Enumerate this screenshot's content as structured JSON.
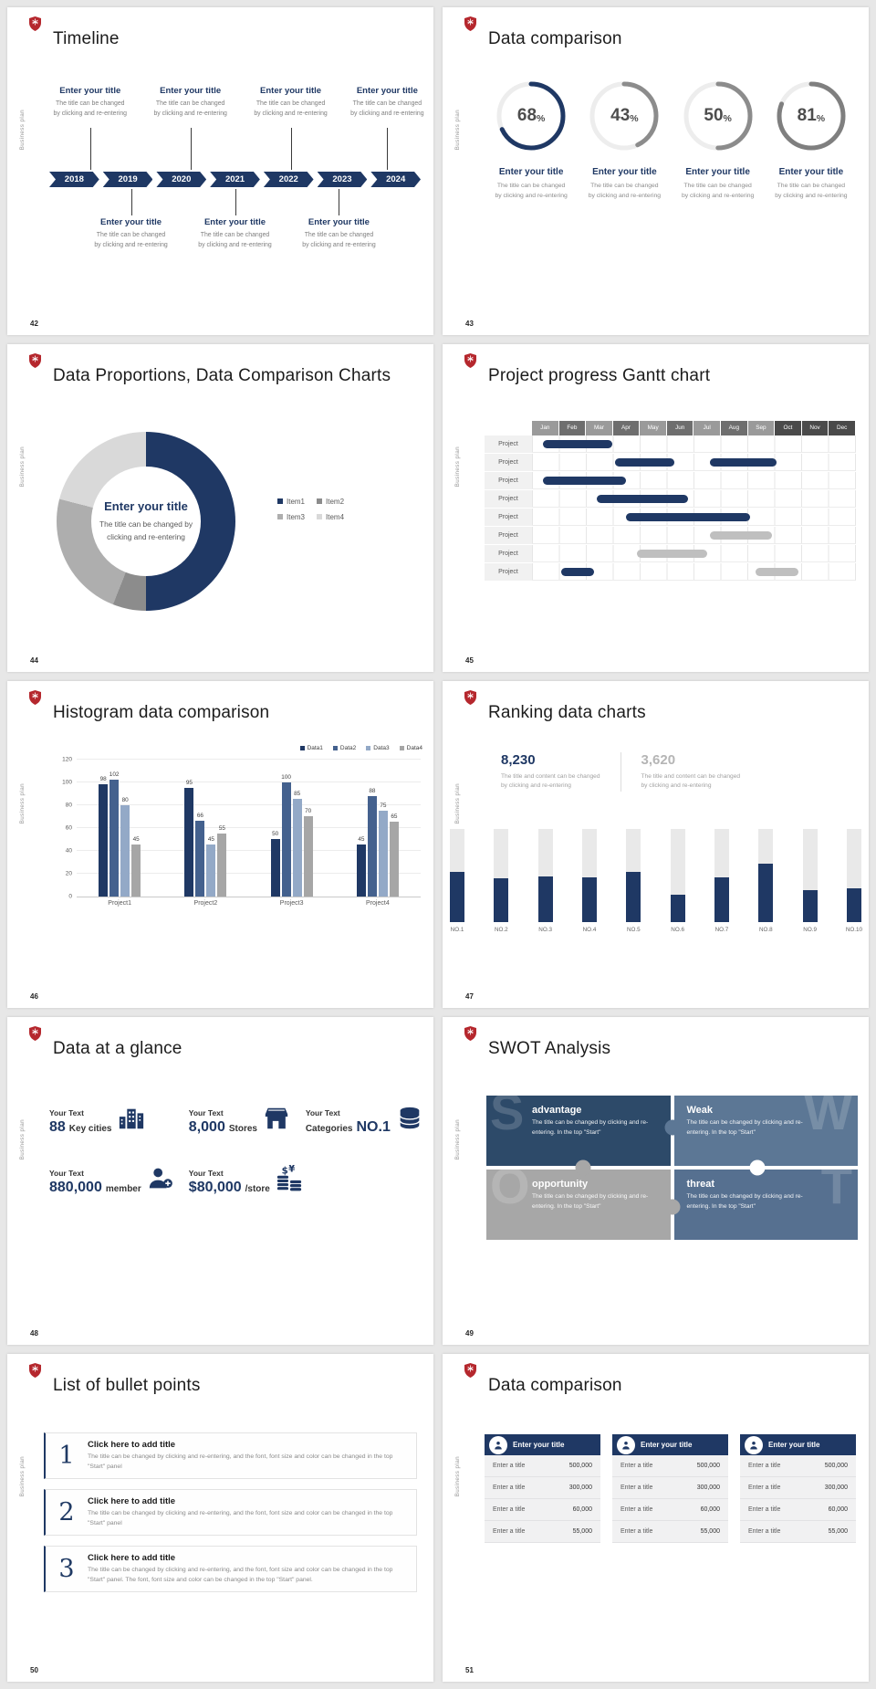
{
  "page": {
    "background": "#e7e7e7"
  },
  "common": {
    "vertical_label": "Business plan"
  },
  "colors": {
    "navy": "#1f3864",
    "steel": "#44618e",
    "light_steel": "#93a9c7",
    "gray": "#a6a6a6",
    "brand_red": "#b5272d"
  },
  "slides": [
    {
      "number": "42",
      "title": "Timeline"
    },
    {
      "number": "43",
      "title": "Data comparison"
    },
    {
      "number": "44",
      "title": "Data Proportions, Data Comparison Charts"
    },
    {
      "number": "45",
      "title": "Project progress Gantt chart"
    },
    {
      "number": "46",
      "title": "Histogram data comparison"
    },
    {
      "number": "47",
      "title": "Ranking data charts"
    },
    {
      "number": "48",
      "title": "Data at a glance"
    },
    {
      "number": "49",
      "title": "SWOT Analysis"
    },
    {
      "number": "50",
      "title": "List of bullet points"
    },
    {
      "number": "51",
      "title": "Data comparison"
    }
  ],
  "timeline": {
    "years": [
      "2018",
      "2019",
      "2020",
      "2021",
      "2022",
      "2023",
      "2024"
    ],
    "top_items": [
      {
        "title": "Enter your title",
        "caption_line1": "The title can be changed",
        "caption_line2": "by clicking and re-entering"
      },
      {
        "title": "Enter your title",
        "caption_line1": "The title can be changed",
        "caption_line2": "by clicking and re-entering"
      },
      {
        "title": "Enter your title",
        "caption_line1": "The title can be changed",
        "caption_line2": "by clicking and re-entering"
      },
      {
        "title": "Enter your title",
        "caption_line1": "The title can be changed",
        "caption_line2": "by clicking and re-entering"
      }
    ],
    "bottom_items": [
      {
        "title": "Enter your title",
        "caption_line1": "The title can be changed",
        "caption_line2": "by clicking and re-entering"
      },
      {
        "title": "Enter your title",
        "caption_line1": "The title can be changed",
        "caption_line2": "by clicking and re-entering"
      },
      {
        "title": "Enter your title",
        "caption_line1": "The title can be changed",
        "caption_line2": "by clicking and re-entering"
      }
    ]
  },
  "rings": {
    "items": [
      {
        "title": "Enter your title",
        "caption_line1": "The title can be changed",
        "caption_line2": "by clicking and re-entering"
      },
      {
        "title": "Enter your title",
        "caption_line1": "The title can be changed",
        "caption_line2": "by clicking and re-entering"
      },
      {
        "title": "Enter your title",
        "caption_line1": "The title can be changed",
        "caption_line2": "by clicking and re-entering"
      },
      {
        "title": "Enter your title",
        "caption_line1": "The title can be changed",
        "caption_line2": "by clicking and re-entering"
      }
    ]
  },
  "donut": {
    "center_title": "Enter your title",
    "center_caption": "The title can be changed by clicking and re-entering"
  },
  "glance": {
    "items": [
      {
        "icon": "city-icon",
        "label": "Your Text",
        "prefix": "",
        "number": "88",
        "suffix": "Key cities"
      },
      {
        "icon": "store-icon",
        "label": "Your Text",
        "prefix": "",
        "number": "8,000",
        "suffix": "Stores"
      },
      {
        "icon": "boxes-icon",
        "label": "Your Text",
        "prefix": "Categories",
        "number": "NO.1",
        "suffix": ""
      },
      {
        "icon": "member-icon",
        "label": "Your Text",
        "prefix": "",
        "number": "880,000",
        "suffix": "member"
      },
      {
        "icon": "coins-icon",
        "label": "Your Text",
        "prefix": "",
        "number": "$80,000",
        "suffix": "/store"
      }
    ]
  },
  "swot": {
    "cells": [
      {
        "letter": "S",
        "title": "advantage",
        "caption": "The title can be changed by clicking and re-entering. In the top \"Start\"",
        "color": "#2d4a69",
        "align": "left"
      },
      {
        "letter": "W",
        "title": "Weak",
        "caption": "The title can be changed by clicking and re-entering. In the top \"Start\"",
        "color": "#5c7795",
        "align": "right"
      },
      {
        "letter": "O",
        "title": "opportunity",
        "caption": "The title can be changed by clicking and re-entering. In the top \"Start\"",
        "color": "#a7a7a7",
        "align": "left"
      },
      {
        "letter": "T",
        "title": "threat",
        "caption": "The title can be changed by clicking and re-entering. In the top \"Start\"",
        "color": "#567090",
        "align": "right"
      }
    ],
    "knobs": [
      {
        "x": "50%",
        "y": "22%",
        "color": "#5c7795"
      },
      {
        "x": "26%",
        "y": "50%",
        "color": "#a7a7a7"
      },
      {
        "x": "73%",
        "y": "50%",
        "color": "#ffffff"
      },
      {
        "x": "50%",
        "y": "77%",
        "color": "#a7a7a7"
      }
    ]
  },
  "bullets": {
    "items": [
      {
        "num": "1",
        "title": "Click here to add title",
        "caption": "The title can be changed by clicking and re-entering, and the font, font size and color can be changed in the top \"Start\" panel"
      },
      {
        "num": "2",
        "title": "Click here to add title",
        "caption": "The title can be changed by clicking and re-entering, and the font, font size and color can be changed in the top \"Start\" panel"
      },
      {
        "num": "3",
        "title": "Click here to add title",
        "caption": "The title can be changed by clicking and re-entering, and the font, font size and color can be changed in the top \"Start\" panel. The font, font size and color can be changed in the top \"Start\" panel."
      }
    ]
  },
  "compare": {
    "cards": [
      {
        "title": "Enter your title",
        "rows": [
          {
            "label": "Enter a title",
            "value": "500,000"
          },
          {
            "label": "Enter a title",
            "value": "300,000"
          },
          {
            "label": "Enter a title",
            "value": "60,000"
          },
          {
            "label": "Enter a title",
            "value": "55,000"
          }
        ]
      },
      {
        "title": "Enter your title",
        "rows": [
          {
            "label": "Enter a title",
            "value": "500,000"
          },
          {
            "label": "Enter a title",
            "value": "300,000"
          },
          {
            "label": "Enter a title",
            "value": "60,000"
          },
          {
            "label": "Enter a title",
            "value": "55,000"
          }
        ]
      },
      {
        "title": "Enter your title",
        "rows": [
          {
            "label": "Enter a title",
            "value": "500,000"
          },
          {
            "label": "Enter a title",
            "value": "300,000"
          },
          {
            "label": "Enter a title",
            "value": "60,000"
          },
          {
            "label": "Enter a title",
            "value": "55,000"
          }
        ]
      }
    ]
  },
  "chart_data": [
    {
      "type": "pie",
      "variant": "progress-rings",
      "slide": 43,
      "values": [
        68,
        43,
        50,
        81
      ],
      "unit": "%",
      "arc_colors": [
        "#1f3864",
        "#8c8c8c",
        "#8c8c8c",
        "#7f7f7f"
      ],
      "track_color": "#ededed"
    },
    {
      "type": "pie",
      "variant": "donut",
      "slide": 44,
      "legend_position": "right",
      "series": [
        {
          "name": "Item1",
          "value": 50,
          "color": "#1f3864"
        },
        {
          "name": "Item2",
          "value": 6,
          "color": "#8c8c8c"
        },
        {
          "name": "Item3",
          "value": 23,
          "color": "#aeaeae"
        },
        {
          "name": "Item4",
          "value": 21,
          "color": "#d9d9d9"
        }
      ]
    },
    {
      "type": "table",
      "variant": "gantt",
      "slide": 45,
      "row_label": "Project",
      "columns": [
        "Jan",
        "Feb",
        "Mar",
        "Apr",
        "May",
        "Jun",
        "Jul",
        "Aug",
        "Sep",
        "Oct",
        "Nov",
        "Dec"
      ],
      "column_colors": [
        "#9a9a9a",
        "#6e6e6e",
        "#9a9a9a",
        "#6e6e6e",
        "#9a9a9a",
        "#6e6e6e",
        "#9a9a9a",
        "#6e6e6e",
        "#9a9a9a",
        "#4a4a4a",
        "#4a4a4a",
        "#4a4a4a"
      ],
      "rows": [
        [
          {
            "start": 0.4,
            "end": 3.0,
            "color": "#1f3864"
          }
        ],
        [
          {
            "start": 3.1,
            "end": 5.3,
            "color": "#1f3864"
          },
          {
            "start": 6.6,
            "end": 9.1,
            "color": "#1f3864"
          }
        ],
        [
          {
            "start": 0.4,
            "end": 3.5,
            "color": "#1f3864"
          }
        ],
        [
          {
            "start": 2.4,
            "end": 5.8,
            "color": "#1f3864"
          }
        ],
        [
          {
            "start": 3.5,
            "end": 8.1,
            "color": "#1f3864"
          }
        ],
        [
          {
            "start": 6.6,
            "end": 8.9,
            "color": "#bfbfbf"
          }
        ],
        [
          {
            "start": 3.9,
            "end": 6.5,
            "color": "#bfbfbf"
          }
        ],
        [
          {
            "start": 1.1,
            "end": 2.3,
            "color": "#1f3864"
          },
          {
            "start": 8.3,
            "end": 9.9,
            "color": "#bfbfbf"
          }
        ]
      ]
    },
    {
      "type": "bar",
      "variant": "grouped",
      "slide": 46,
      "categories": [
        "Project1",
        "Project2",
        "Project3",
        "Project4"
      ],
      "series": [
        {
          "name": "Data1",
          "color": "#1f3864",
          "values": [
            98,
            95,
            50,
            45
          ]
        },
        {
          "name": "Data2",
          "color": "#44618e",
          "values": [
            102,
            66,
            100,
            88
          ]
        },
        {
          "name": "Data3",
          "color": "#93a9c7",
          "values": [
            80,
            45,
            85,
            75
          ]
        },
        {
          "name": "Data4",
          "color": "#a6a6a6",
          "values": [
            45,
            55,
            70,
            65
          ]
        }
      ],
      "ylim": [
        0,
        120
      ],
      "yticks": [
        0,
        20,
        40,
        60,
        80,
        100,
        120
      ],
      "grid": true,
      "legend_position": "top-right"
    },
    {
      "type": "bar",
      "variant": "ranking",
      "slide": 47,
      "categories": [
        "NO.1",
        "NO.2",
        "NO.3",
        "NO.4",
        "NO.5",
        "NO.6",
        "NO.7",
        "NO.8",
        "NO.9",
        "NO.10"
      ],
      "values": [
        54,
        47,
        49,
        48,
        54,
        29,
        48,
        62,
        34,
        36
      ],
      "value_max": 100,
      "fill_color": "#1f3864",
      "track_color": "#e9e9e9",
      "headlines": [
        {
          "value": "8,230",
          "color": "#1f3864",
          "caption_line1": "The title and content can be changed",
          "caption_line2": "by clicking and re-entering"
        },
        {
          "value": "3,620",
          "color": "#b5b5b5",
          "caption_line1": "The title and content can be changed",
          "caption_line2": "by clicking and re-entering"
        }
      ]
    }
  ]
}
